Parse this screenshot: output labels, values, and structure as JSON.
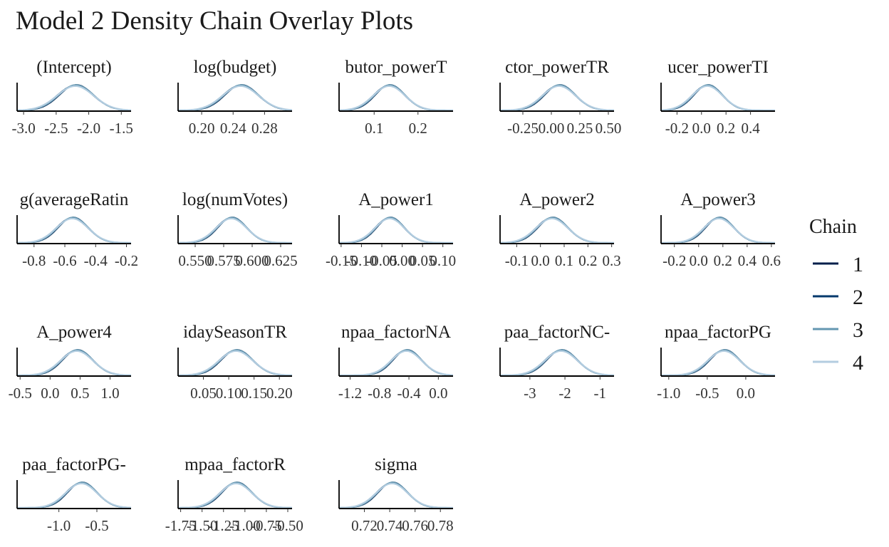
{
  "page": {
    "title": "Model 2 Density Chain Overlay Plots"
  },
  "chart_data": {
    "type": "area",
    "title": "Model 2 Density Chain Overlay Plots",
    "legend": {
      "title": "Chain",
      "placement": "right",
      "entries": [
        {
          "label": "1",
          "color": "#011f4b"
        },
        {
          "label": "2",
          "color": "#03396c"
        },
        {
          "label": "3",
          "color": "#6497b1"
        },
        {
          "label": "4",
          "color": "#b3cde0"
        }
      ]
    },
    "panels": [
      {
        "title": "(Intercept)",
        "xlim": [
          -3.1,
          -1.35
        ],
        "mean": -2.2,
        "sd": 0.27,
        "ticks": [
          -3.0,
          -2.5,
          -2.0,
          -1.5
        ],
        "tick_labels": [
          "-3.0",
          "-2.5",
          "-2.0",
          "-1.5"
        ]
      },
      {
        "title": "log(budget)",
        "xlim": [
          0.17,
          0.315
        ],
        "mean": 0.25,
        "sd": 0.022,
        "ticks": [
          0.2,
          0.24,
          0.28
        ],
        "tick_labels": [
          "0.20",
          "0.24",
          "0.28"
        ]
      },
      {
        "title": "butor_powerT",
        "xlim": [
          0.02,
          0.28
        ],
        "mean": 0.135,
        "sd": 0.035,
        "ticks": [
          0.1,
          0.2
        ],
        "tick_labels": [
          "0.1",
          "0.2"
        ]
      },
      {
        "title": "ctor_powerTR",
        "xlim": [
          -0.45,
          0.55
        ],
        "mean": 0.07,
        "sd": 0.14,
        "ticks": [
          -0.25,
          0.0,
          0.25,
          0.5
        ],
        "tick_labels": [
          "-0.25",
          "0.00",
          "0.25",
          "0.50"
        ]
      },
      {
        "title": "ucer_powerTI",
        "xlim": [
          -0.33,
          0.6
        ],
        "mean": 0.05,
        "sd": 0.12,
        "ticks": [
          -0.2,
          0.0,
          0.2,
          0.4
        ],
        "tick_labels": [
          "-0.2",
          "0.0",
          "0.2",
          "0.4"
        ]
      },
      {
        "title": "g(averageRatin",
        "xlim": [
          -0.91,
          -0.17
        ],
        "mean": -0.55,
        "sd": 0.1,
        "ticks": [
          -0.8,
          -0.6,
          -0.4,
          -0.2
        ],
        "tick_labels": [
          "-0.8",
          "-0.6",
          "-0.4",
          "-0.2"
        ]
      },
      {
        "title": "log(numVotes)",
        "xlim": [
          0.535,
          0.635
        ],
        "mean": 0.582,
        "sd": 0.013,
        "ticks": [
          0.55,
          0.575,
          0.6,
          0.625
        ],
        "tick_labels": [
          "0.550",
          "0.575",
          "0.600",
          "0.625"
        ]
      },
      {
        "title": "A_power1",
        "xlim": [
          -0.155,
          0.125
        ],
        "mean": -0.03,
        "sd": 0.035,
        "ticks": [
          -0.15,
          -0.1,
          -0.05,
          0.0,
          0.05,
          0.1
        ],
        "tick_labels": [
          "-0.15",
          "-0.10",
          "-0.05",
          "0.00",
          "0.05",
          "0.10"
        ]
      },
      {
        "title": "A_power2",
        "xlim": [
          -0.17,
          0.31
        ],
        "mean": 0.05,
        "sd": 0.065,
        "ticks": [
          -0.1,
          0.0,
          0.1,
          0.2,
          0.3
        ],
        "tick_labels": [
          "-0.1",
          "0.0",
          "0.1",
          "0.2",
          "0.3"
        ]
      },
      {
        "title": "A_power3",
        "xlim": [
          -0.31,
          0.63
        ],
        "mean": 0.17,
        "sd": 0.12,
        "ticks": [
          -0.2,
          0.0,
          0.2,
          0.4,
          0.6
        ],
        "tick_labels": [
          "-0.2",
          "0.0",
          "0.2",
          "0.4",
          "0.6"
        ]
      },
      {
        "title": "A_power4",
        "xlim": [
          -0.55,
          1.35
        ],
        "mean": 0.45,
        "sd": 0.26,
        "ticks": [
          -0.5,
          0.0,
          0.5,
          1.0
        ],
        "tick_labels": [
          "-0.5",
          "0.0",
          "0.5",
          "1.0"
        ]
      },
      {
        "title": "idaySeasonTR",
        "xlim": [
          0.0,
          0.225
        ],
        "mean": 0.115,
        "sd": 0.032,
        "ticks": [
          0.05,
          0.1,
          0.15,
          0.2
        ],
        "tick_labels": [
          "0.05",
          "0.10",
          "0.15",
          "0.20"
        ]
      },
      {
        "title": "npaa_factorNA",
        "xlim": [
          -1.35,
          0.2
        ],
        "mean": -0.43,
        "sd": 0.2,
        "ticks": [
          -1.2,
          -0.8,
          -0.4,
          0.0
        ],
        "tick_labels": [
          "-1.2",
          "-0.8",
          "-0.4",
          "0.0"
        ]
      },
      {
        "title": "paa_factorNC-",
        "xlim": [
          -3.85,
          -0.6
        ],
        "mean": -2.1,
        "sd": 0.45,
        "ticks": [
          -3,
          -2,
          -1
        ],
        "tick_labels": [
          "-3",
          "-2",
          "-1"
        ]
      },
      {
        "title": "npaa_factorPG",
        "xlim": [
          -1.1,
          0.38
        ],
        "mean": -0.28,
        "sd": 0.2,
        "ticks": [
          -1.0,
          -0.5,
          0.0
        ],
        "tick_labels": [
          "-1.0",
          "-0.5",
          "0.0"
        ]
      },
      {
        "title": "paa_factorPG-",
        "xlim": [
          -1.55,
          -0.05
        ],
        "mean": -0.7,
        "sd": 0.2,
        "ticks": [
          -1.0,
          -0.5
        ],
        "tick_labels": [
          "-1.0",
          "-0.5"
        ]
      },
      {
        "title": "mpaa_factorR",
        "xlim": [
          -1.78,
          -0.45
        ],
        "mean": -1.1,
        "sd": 0.18,
        "ticks": [
          -1.75,
          -1.5,
          -1.25,
          -1.0,
          -0.75,
          -0.5
        ],
        "tick_labels": [
          "-1.75",
          "-1.50",
          "-1.25",
          "-1.00",
          "-0.75",
          "-0.50"
        ]
      },
      {
        "title": "sigma",
        "xlim": [
          0.7,
          0.79
        ],
        "mean": 0.742,
        "sd": 0.012,
        "ticks": [
          0.72,
          0.74,
          0.76,
          0.78
        ],
        "tick_labels": [
          "0.72",
          "0.74",
          "0.76",
          "0.78"
        ]
      }
    ]
  }
}
